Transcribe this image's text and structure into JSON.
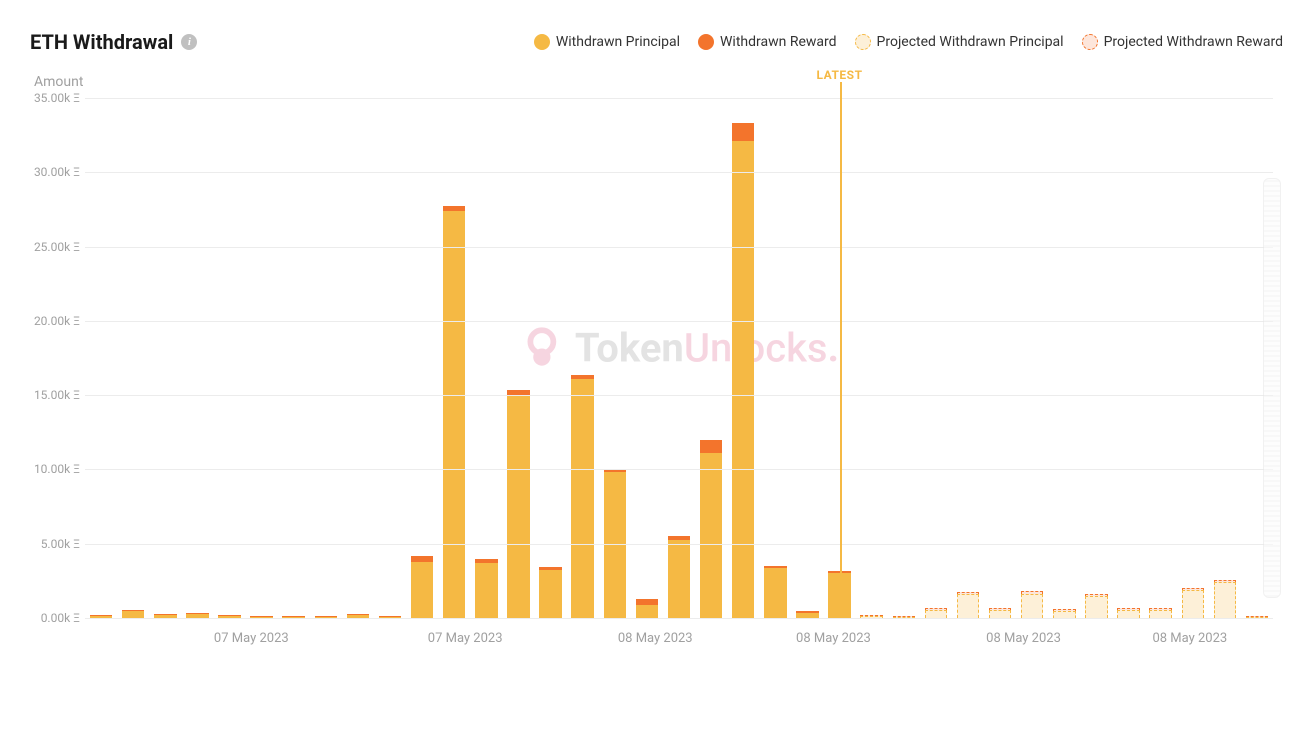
{
  "title": "ETH Withdrawal",
  "y_title": "Amount",
  "legend": {
    "withdrawn_principal": "Withdrawn Principal",
    "withdrawn_reward": "Withdrawn Reward",
    "projected_principal": "Projected Withdrawn Principal",
    "projected_reward": "Projected Withdrawn Reward"
  },
  "latest_label": "LATEST",
  "chart": {
    "type": "stacked-bar",
    "ylim": [
      0,
      35
    ],
    "ytick_step": 5,
    "y_unit_suffix": "k Ξ",
    "yticks": [
      "0.00k Ξ",
      "5.00k Ξ",
      "10.00k Ξ",
      "15.00k Ξ",
      "20.00k Ξ",
      "25.00k Ξ",
      "30.00k Ξ",
      "35.00k Ξ"
    ],
    "colors": {
      "principal": "#f5b944",
      "reward": "#f3742c",
      "proj_principal_fill": "#fdf0d8",
      "proj_principal_border": "#f5b944",
      "proj_reward_fill": "#fde6db",
      "proj_reward_border": "#f3742c",
      "grid": "#ececec",
      "text_muted": "#a0a0a0",
      "background": "#ffffff"
    },
    "latest_index": 24,
    "xticks": [
      {
        "pos_pct": 14,
        "label": "07 May 2023"
      },
      {
        "pos_pct": 32,
        "label": "07 May 2023"
      },
      {
        "pos_pct": 48,
        "label": "08 May 2023"
      },
      {
        "pos_pct": 63,
        "label": "08 May 2023"
      },
      {
        "pos_pct": 79,
        "label": "08 May 2023"
      },
      {
        "pos_pct": 93,
        "label": "08 May 2023"
      }
    ],
    "bars": [
      {
        "principal": 0.15,
        "reward": 0.05,
        "projected": false
      },
      {
        "principal": 0.45,
        "reward": 0.1,
        "projected": false
      },
      {
        "principal": 0.2,
        "reward": 0.1,
        "projected": false
      },
      {
        "principal": 0.25,
        "reward": 0.08,
        "projected": false
      },
      {
        "principal": 0.15,
        "reward": 0.05,
        "projected": false
      },
      {
        "principal": 0.08,
        "reward": 0.03,
        "projected": false
      },
      {
        "principal": 0.1,
        "reward": 0.03,
        "projected": false
      },
      {
        "principal": 0.08,
        "reward": 0.03,
        "projected": false
      },
      {
        "principal": 0.22,
        "reward": 0.07,
        "projected": false
      },
      {
        "principal": 0.1,
        "reward": 0.05,
        "projected": false
      },
      {
        "principal": 3.8,
        "reward": 0.4,
        "projected": false
      },
      {
        "principal": 27.4,
        "reward": 0.3,
        "projected": false
      },
      {
        "principal": 3.7,
        "reward": 0.3,
        "projected": false
      },
      {
        "principal": 15.0,
        "reward": 0.35,
        "projected": false
      },
      {
        "principal": 3.2,
        "reward": 0.25,
        "projected": false
      },
      {
        "principal": 16.1,
        "reward": 0.25,
        "projected": false
      },
      {
        "principal": 9.85,
        "reward": 0.15,
        "projected": false
      },
      {
        "principal": 0.9,
        "reward": 0.35,
        "projected": false
      },
      {
        "principal": 5.25,
        "reward": 0.25,
        "projected": false
      },
      {
        "principal": 11.1,
        "reward": 0.9,
        "projected": false
      },
      {
        "principal": 32.1,
        "reward": 1.2,
        "projected": false
      },
      {
        "principal": 3.35,
        "reward": 0.15,
        "projected": false
      },
      {
        "principal": 0.35,
        "reward": 0.15,
        "projected": false
      },
      {
        "principal": 3.05,
        "reward": 0.1,
        "projected": false
      },
      {
        "principal": 0.15,
        "reward": 0.08,
        "projected": true
      },
      {
        "principal": 0.1,
        "reward": 0.03,
        "projected": true
      },
      {
        "principal": 0.55,
        "reward": 0.12,
        "projected": true
      },
      {
        "principal": 1.6,
        "reward": 0.15,
        "projected": true
      },
      {
        "principal": 0.55,
        "reward": 0.12,
        "projected": true
      },
      {
        "principal": 1.65,
        "reward": 0.15,
        "projected": true
      },
      {
        "principal": 0.5,
        "reward": 0.1,
        "projected": true
      },
      {
        "principal": 1.45,
        "reward": 0.15,
        "projected": true
      },
      {
        "principal": 0.55,
        "reward": 0.12,
        "projected": true
      },
      {
        "principal": 0.55,
        "reward": 0.1,
        "projected": true
      },
      {
        "principal": 1.9,
        "reward": 0.15,
        "projected": true
      },
      {
        "principal": 2.4,
        "reward": 0.15,
        "projected": true
      },
      {
        "principal": 0.1,
        "reward": 0.03,
        "projected": true
      }
    ]
  },
  "watermark": {
    "text_a": "Token",
    "text_b": "Unlocks",
    "dot": "."
  }
}
